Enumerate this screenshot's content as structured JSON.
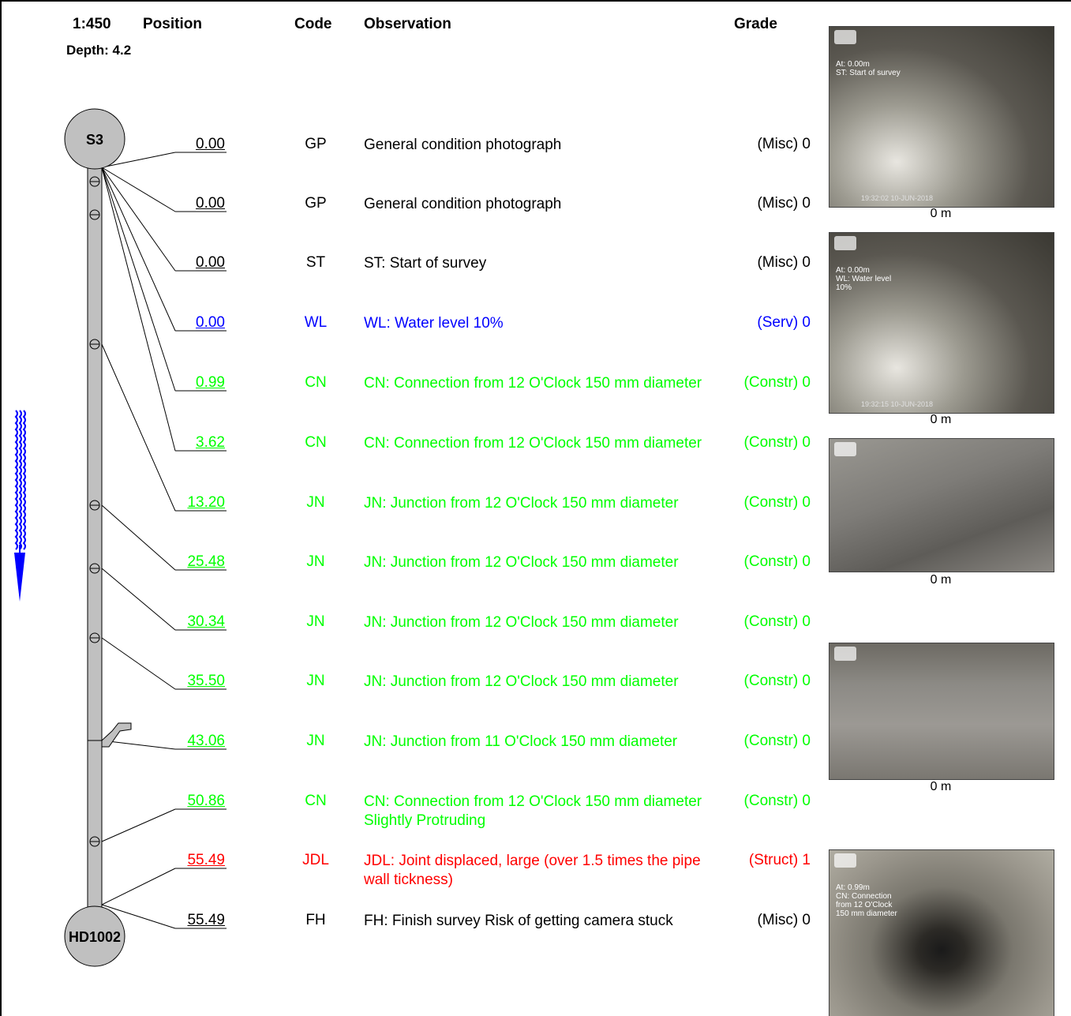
{
  "header": {
    "scale": "1:450",
    "position": "Position",
    "code": "Code",
    "observation": "Observation",
    "grade": "Grade",
    "depth": "Depth: 4.2"
  },
  "manholes": {
    "start": "S3",
    "finish": "HD1002"
  },
  "rows": [
    {
      "position": "0.00",
      "code": "GP",
      "observation": "General condition photograph",
      "grade": "(Misc) 0",
      "color": "#000000"
    },
    {
      "position": "0.00",
      "code": "GP",
      "observation": "General condition photograph",
      "grade": "(Misc) 0",
      "color": "#000000"
    },
    {
      "position": "0.00",
      "code": "ST",
      "observation": "ST: Start of survey",
      "grade": "(Misc) 0",
      "color": "#000000"
    },
    {
      "position": "0.00",
      "code": "WL",
      "observation": "WL: Water level 10%",
      "grade": "(Serv) 0",
      "color": "#0000ff"
    },
    {
      "position": "0.99",
      "code": "CN",
      "observation": "CN: Connection from 12 O'Clock  150 mm diameter",
      "grade": "(Constr) 0",
      "color": "#00ff00"
    },
    {
      "position": "3.62",
      "code": "CN",
      "observation": "CN: Connection from 12 O'Clock  150 mm diameter",
      "grade": "(Constr) 0",
      "color": "#00ff00"
    },
    {
      "position": "13.20",
      "code": "JN",
      "observation": "JN: Junction from 12 O'Clock  150 mm diameter",
      "grade": "(Constr) 0",
      "color": "#00ff00"
    },
    {
      "position": "25.48",
      "code": "JN",
      "observation": "JN: Junction from 12 O'Clock  150 mm diameter",
      "grade": "(Constr) 0",
      "color": "#00ff00"
    },
    {
      "position": "30.34",
      "code": "JN",
      "observation": "JN: Junction from 12 O'Clock  150 mm diameter",
      "grade": "(Constr) 0",
      "color": "#00ff00"
    },
    {
      "position": "35.50",
      "code": "JN",
      "observation": "JN: Junction from 12 O'Clock  150 mm diameter",
      "grade": "(Constr) 0",
      "color": "#00ff00"
    },
    {
      "position": "43.06",
      "code": "JN",
      "observation": "JN: Junction from 11 O'Clock  150 mm diameter",
      "grade": "(Constr) 0",
      "color": "#00ff00"
    },
    {
      "position": "50.86",
      "code": "CN",
      "observation": "CN: Connection from 12 O'Clock  150 mm diameter  Slightly Protruding",
      "grade": "(Constr) 0",
      "color": "#00ff00"
    },
    {
      "position": "55.49",
      "code": "JDL",
      "observation": "JDL: Joint displaced, large (over 1.5 times the pipe wall tickness)",
      "grade": "(Struct) 1",
      "color": "#ff0000"
    },
    {
      "position": "55.49",
      "code": "FH",
      "observation": "FH: Finish survey  Risk of getting camera stuck",
      "grade": "(Misc) 0",
      "color": "#000000"
    }
  ],
  "photos": [
    {
      "overlay": "At: 0.00m\nST: Start of survey",
      "footer": "19:32:02 10-JUN-2018",
      "caption": "0 m"
    },
    {
      "overlay": "At: 0.00m\nWL: Water level\n10%",
      "footer": "19:32:15 10-JUN-2018",
      "caption": "0 m"
    },
    {
      "overlay": "",
      "footer": "",
      "caption": "0 m"
    },
    {
      "overlay": "",
      "footer": "",
      "caption": "0 m"
    },
    {
      "overlay": "At: 0.99m\nCN: Connection\nfrom 12 O'Clock\n150 mm diameter",
      "footer": "",
      "caption": ""
    }
  ],
  "colors": {
    "pipe": "#c0c0c0",
    "flow_arrow": "#0000ff"
  },
  "icons": {
    "flow": "flow-direction-arrow-icon"
  }
}
